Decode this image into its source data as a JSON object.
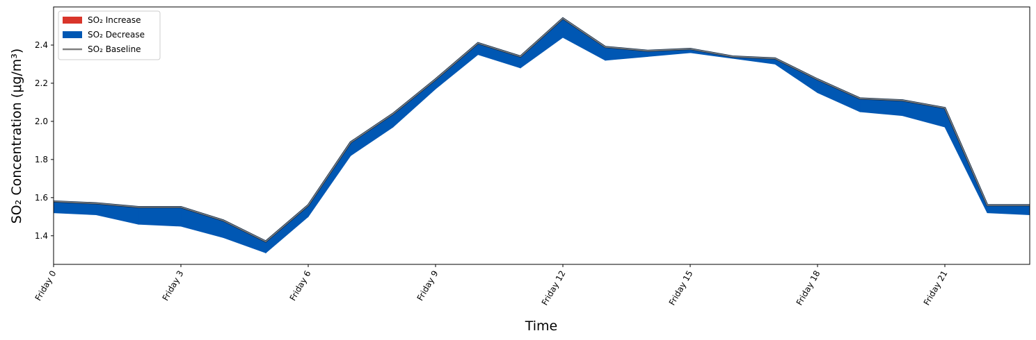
{
  "chart_data": {
    "type": "area_diff",
    "x_label": "Time",
    "y_label": "SO₂ Concentration (μg/m³)",
    "categories": [
      "Friday 0",
      null,
      null,
      "Friday 3",
      null,
      null,
      "Friday 6",
      null,
      null,
      "Friday 9",
      null,
      null,
      "Friday 12",
      null,
      null,
      "Friday 15",
      null,
      null,
      "Friday 18",
      null,
      null,
      "Friday 21",
      null,
      null
    ],
    "baseline": {
      "name": "SO₂ Baseline",
      "color": "#808080",
      "values": [
        1.58,
        1.57,
        1.55,
        1.55,
        1.48,
        1.37,
        1.56,
        1.89,
        2.04,
        2.22,
        2.41,
        2.34,
        2.54,
        2.39,
        2.37,
        2.38,
        2.34,
        2.33,
        2.22,
        2.12,
        2.11,
        2.07,
        1.56,
        1.56
      ]
    },
    "adjusted_values": [
      1.52,
      1.51,
      1.46,
      1.45,
      1.39,
      1.31,
      1.5,
      1.82,
      1.97,
      2.17,
      2.35,
      2.28,
      2.44,
      2.32,
      2.34,
      2.36,
      2.33,
      2.3,
      2.15,
      2.05,
      2.03,
      1.97,
      1.52,
      1.51
    ],
    "fills": [
      {
        "name": "SO₂ Increase",
        "color": "#d9352a"
      },
      {
        "name": "SO₂ Decrease",
        "color": "#0057b3"
      }
    ],
    "ylim": [
      1.25,
      2.6
    ],
    "yticks": [
      1.4,
      1.6,
      1.8,
      {
        "value": 2,
        "label": "2.0"
      },
      2.2,
      2.4
    ],
    "legend": "upper left"
  }
}
